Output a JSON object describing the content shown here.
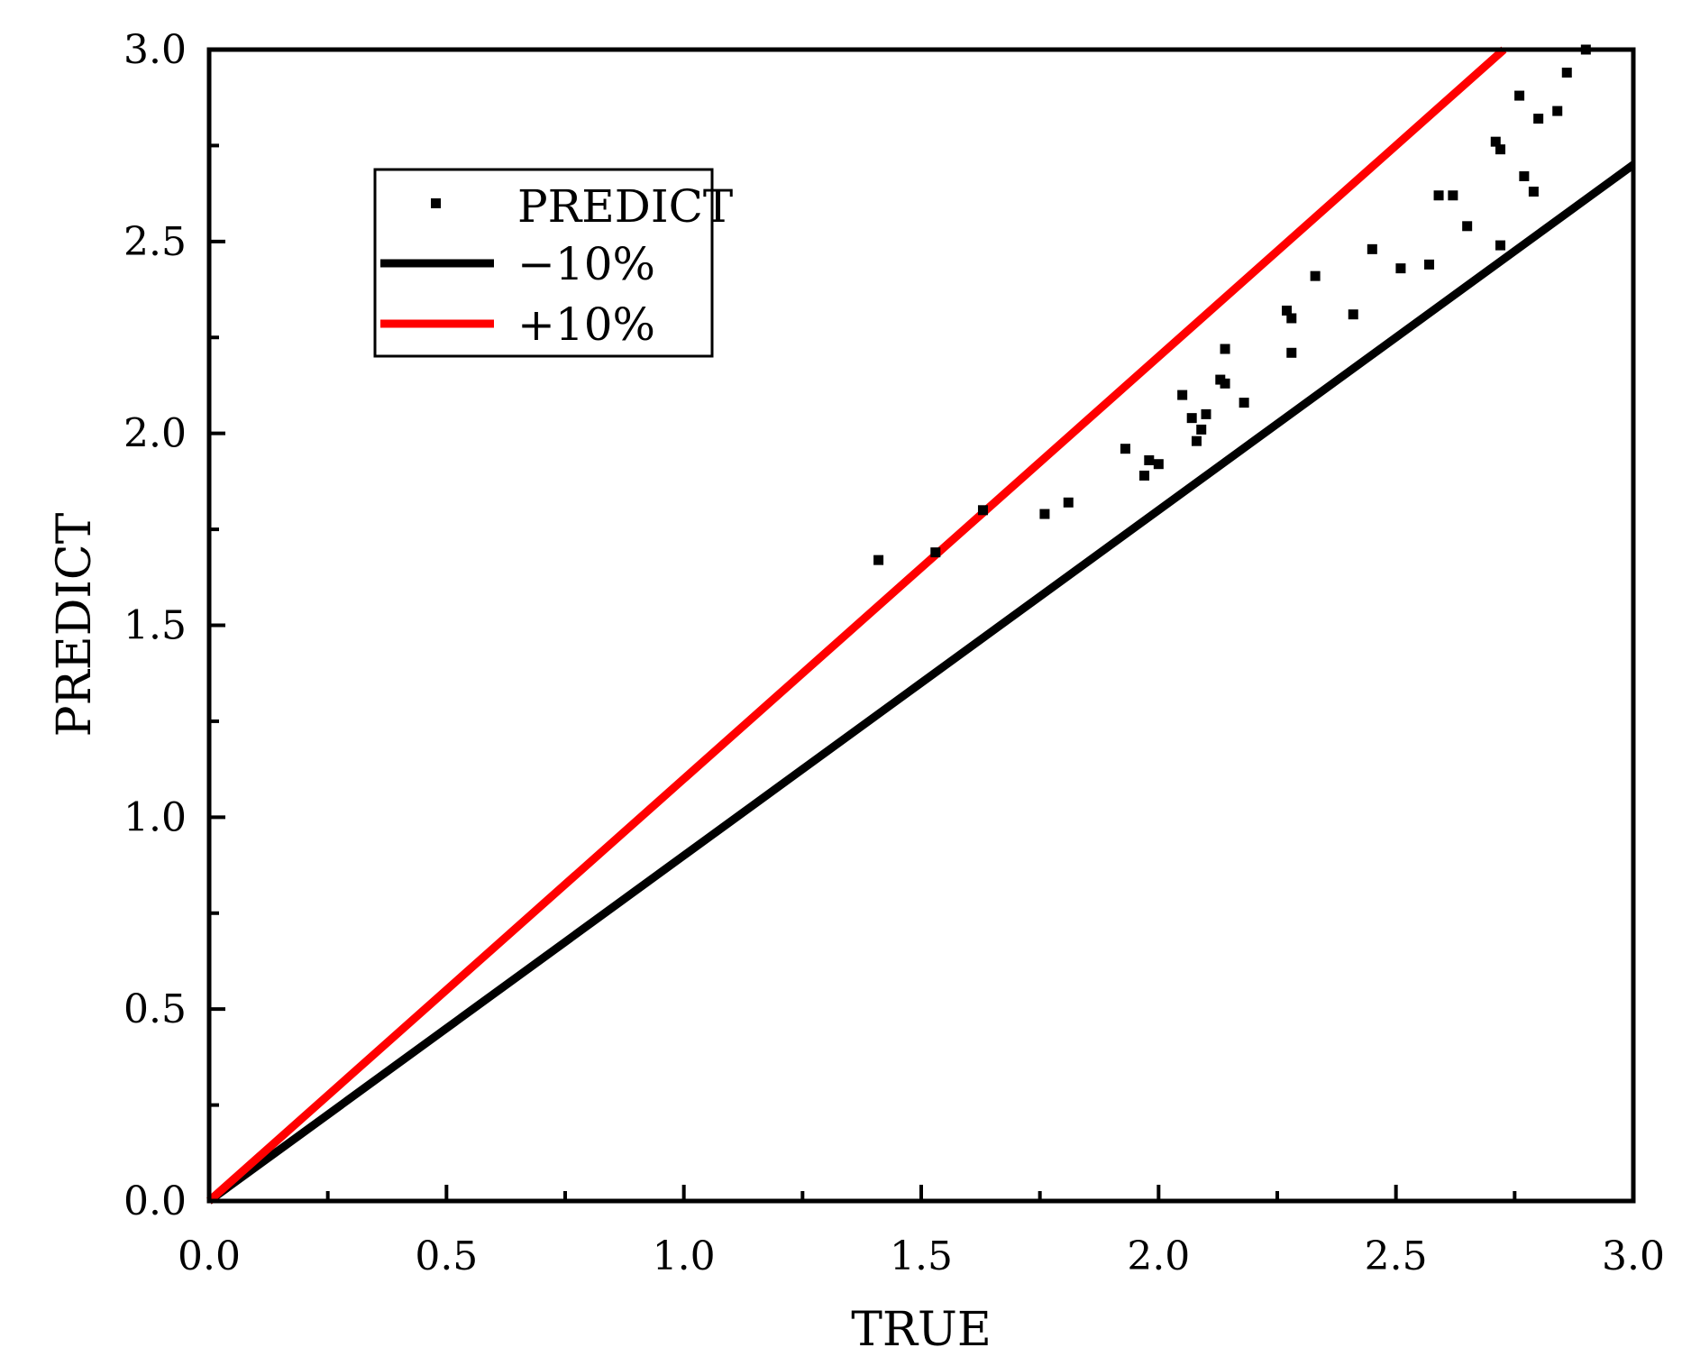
{
  "chart_data": {
    "type": "scatter",
    "xlabel": "TRUE",
    "ylabel": "PREDICT",
    "xlim": [
      0.0,
      3.0
    ],
    "ylim": [
      0.0,
      3.0
    ],
    "grid": false,
    "legend_position": "top-left",
    "x_ticks": [
      0.0,
      0.5,
      1.0,
      1.5,
      2.0,
      2.5,
      3.0
    ],
    "y_ticks": [
      0.0,
      0.5,
      1.0,
      1.5,
      2.0,
      2.5,
      3.0
    ],
    "x_tick_labels": [
      "0.0",
      "0.5",
      "1.0",
      "1.5",
      "2.0",
      "2.5",
      "3.0"
    ],
    "y_tick_labels": [
      "0.0",
      "0.5",
      "1.0",
      "1.5",
      "2.0",
      "2.5",
      "3.0"
    ],
    "series": [
      {
        "name": "PREDICT",
        "kind": "scatter",
        "color": "#000000",
        "points": [
          [
            1.41,
            1.67
          ],
          [
            1.53,
            1.69
          ],
          [
            1.63,
            1.8
          ],
          [
            1.76,
            1.79
          ],
          [
            1.81,
            1.82
          ],
          [
            1.93,
            1.96
          ],
          [
            1.97,
            1.89
          ],
          [
            1.98,
            1.93
          ],
          [
            2.0,
            1.92
          ],
          [
            2.05,
            2.1
          ],
          [
            2.07,
            2.04
          ],
          [
            2.08,
            1.98
          ],
          [
            2.09,
            2.01
          ],
          [
            2.1,
            2.05
          ],
          [
            2.13,
            2.14
          ],
          [
            2.14,
            2.13
          ],
          [
            2.14,
            2.22
          ],
          [
            2.18,
            2.08
          ],
          [
            2.27,
            2.32
          ],
          [
            2.28,
            2.3
          ],
          [
            2.28,
            2.21
          ],
          [
            2.33,
            2.41
          ],
          [
            2.41,
            2.31
          ],
          [
            2.45,
            2.48
          ],
          [
            2.51,
            2.43
          ],
          [
            2.57,
            2.44
          ],
          [
            2.59,
            2.62
          ],
          [
            2.62,
            2.62
          ],
          [
            2.65,
            2.54
          ],
          [
            2.71,
            2.76
          ],
          [
            2.72,
            2.49
          ],
          [
            2.72,
            2.74
          ],
          [
            2.76,
            2.88
          ],
          [
            2.77,
            2.67
          ],
          [
            2.79,
            2.63
          ],
          [
            2.8,
            2.82
          ],
          [
            2.84,
            2.84
          ],
          [
            2.86,
            2.94
          ],
          [
            2.9,
            3.0
          ]
        ]
      },
      {
        "name": "−10%",
        "kind": "line",
        "color": "#000000",
        "slope": 0.9
      },
      {
        "name": "+10%",
        "kind": "line",
        "color": "#ff0000",
        "slope": 1.1
      }
    ]
  }
}
